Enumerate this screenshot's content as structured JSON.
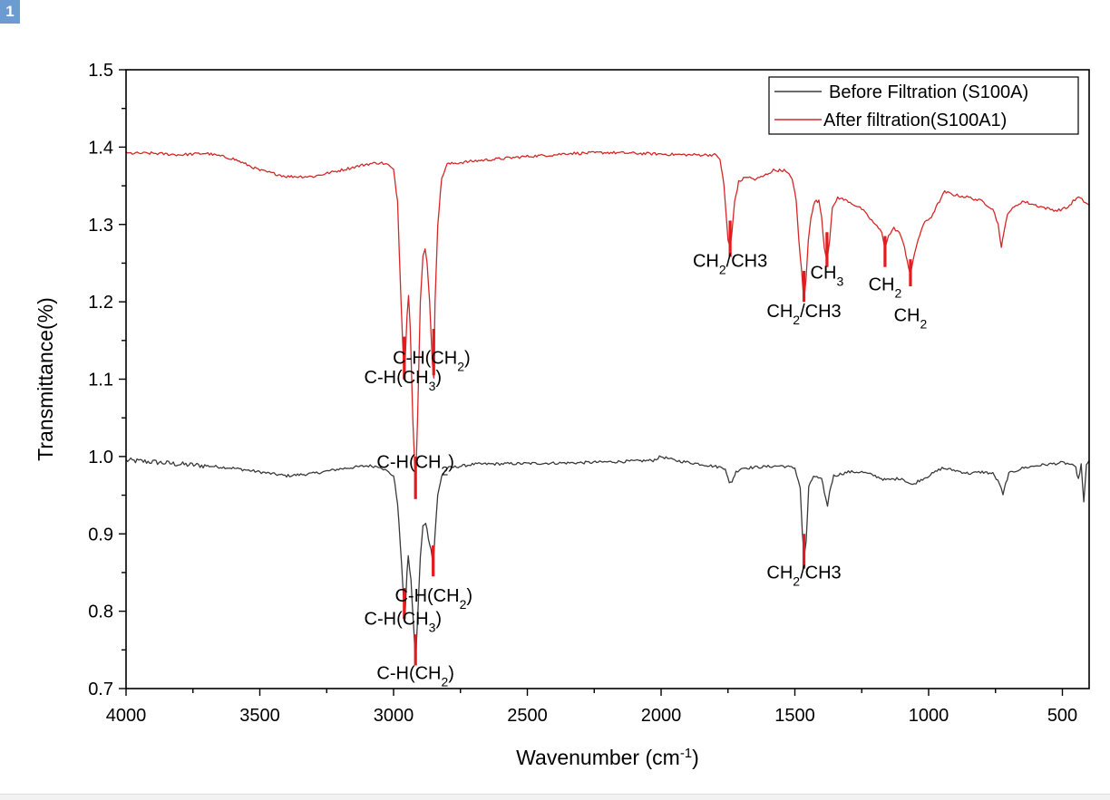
{
  "badge": "1",
  "chart_data": {
    "type": "line",
    "xlabel": "Wavenumber (cm",
    "xlabel_sup": "-1",
    "xlabel_end": ")",
    "ylabel": "Transmittance(%)",
    "xlim": [
      4000,
      400
    ],
    "ylim": [
      0.7,
      1.5
    ],
    "x_reversed": true,
    "xticks": [
      "4000",
      "3500",
      "3000",
      "2500",
      "2000",
      "1500",
      "1000",
      "500"
    ],
    "xtick_values": [
      4000,
      3500,
      3000,
      2500,
      2000,
      1500,
      1000,
      500
    ],
    "yticks": [
      "0.7",
      "0.8",
      "0.9",
      "1.0",
      "1.1",
      "1.2",
      "1.3",
      "1.4",
      "1.5"
    ],
    "ytick_values": [
      0.7,
      0.8,
      0.9,
      1.0,
      1.1,
      1.2,
      1.3,
      1.4,
      1.5
    ],
    "legend_position": "top-right",
    "series": [
      {
        "name": "Before Filtration (S100A)",
        "color": "#3a3a3a",
        "points": [
          [
            4000,
            0.995
          ],
          [
            3900,
            0.993
          ],
          [
            3800,
            0.99
          ],
          [
            3700,
            0.988
          ],
          [
            3600,
            0.985
          ],
          [
            3500,
            0.98
          ],
          [
            3400,
            0.975
          ],
          [
            3300,
            0.978
          ],
          [
            3200,
            0.984
          ],
          [
            3100,
            0.988
          ],
          [
            3050,
            0.987
          ],
          [
            3000,
            0.975
          ],
          [
            2985,
            0.94
          ],
          [
            2970,
            0.86
          ],
          [
            2958,
            0.79
          ],
          [
            2950,
            0.85
          ],
          [
            2945,
            0.87
          ],
          [
            2935,
            0.84
          ],
          [
            2925,
            0.78
          ],
          [
            2918,
            0.735
          ],
          [
            2910,
            0.79
          ],
          [
            2900,
            0.87
          ],
          [
            2890,
            0.91
          ],
          [
            2880,
            0.915
          ],
          [
            2870,
            0.895
          ],
          [
            2860,
            0.88
          ],
          [
            2852,
            0.86
          ],
          [
            2845,
            0.9
          ],
          [
            2835,
            0.95
          ],
          [
            2820,
            0.975
          ],
          [
            2800,
            0.985
          ],
          [
            2700,
            0.99
          ],
          [
            2500,
            0.991
          ],
          [
            2300,
            0.992
          ],
          [
            2200,
            0.993
          ],
          [
            2100,
            0.994
          ],
          [
            2030,
            0.995
          ],
          [
            2000,
            1.0
          ],
          [
            1950,
            0.995
          ],
          [
            1850,
            0.99
          ],
          [
            1760,
            0.985
          ],
          [
            1745,
            0.965
          ],
          [
            1735,
            0.968
          ],
          [
            1720,
            0.98
          ],
          [
            1700,
            0.985
          ],
          [
            1600,
            0.987
          ],
          [
            1550,
            0.988
          ],
          [
            1500,
            0.985
          ],
          [
            1480,
            0.96
          ],
          [
            1472,
            0.9
          ],
          [
            1465,
            0.87
          ],
          [
            1458,
            0.89
          ],
          [
            1448,
            0.96
          ],
          [
            1430,
            0.975
          ],
          [
            1400,
            0.97
          ],
          [
            1390,
            0.955
          ],
          [
            1378,
            0.935
          ],
          [
            1370,
            0.955
          ],
          [
            1355,
            0.975
          ],
          [
            1300,
            0.98
          ],
          [
            1250,
            0.98
          ],
          [
            1200,
            0.975
          ],
          [
            1165,
            0.97
          ],
          [
            1150,
            0.97
          ],
          [
            1100,
            0.972
          ],
          [
            1080,
            0.967
          ],
          [
            1060,
            0.963
          ],
          [
            1040,
            0.968
          ],
          [
            1000,
            0.975
          ],
          [
            950,
            0.985
          ],
          [
            900,
            0.982
          ],
          [
            850,
            0.978
          ],
          [
            800,
            0.98
          ],
          [
            760,
            0.978
          ],
          [
            735,
            0.965
          ],
          [
            722,
            0.95
          ],
          [
            712,
            0.965
          ],
          [
            700,
            0.978
          ],
          [
            650,
            0.985
          ],
          [
            600,
            0.988
          ],
          [
            550,
            0.99
          ],
          [
            500,
            0.992
          ],
          [
            470,
            0.99
          ],
          [
            450,
            0.985
          ],
          [
            440,
            0.97
          ],
          [
            430,
            0.99
          ],
          [
            420,
            0.94
          ],
          [
            410,
            0.99
          ],
          [
            400,
            0.995
          ]
        ]
      },
      {
        "name": "After filtration(S100A1)",
        "color": "#d62728",
        "points": [
          [
            4000,
            1.392
          ],
          [
            3900,
            1.392
          ],
          [
            3800,
            1.39
          ],
          [
            3700,
            1.392
          ],
          [
            3600,
            1.385
          ],
          [
            3500,
            1.37
          ],
          [
            3400,
            1.362
          ],
          [
            3300,
            1.362
          ],
          [
            3200,
            1.37
          ],
          [
            3100,
            1.378
          ],
          [
            3050,
            1.38
          ],
          [
            3020,
            1.377
          ],
          [
            3000,
            1.37
          ],
          [
            2985,
            1.33
          ],
          [
            2972,
            1.2
          ],
          [
            2960,
            1.1
          ],
          [
            2950,
            1.18
          ],
          [
            2944,
            1.21
          ],
          [
            2938,
            1.17
          ],
          [
            2928,
            1.05
          ],
          [
            2918,
            0.96
          ],
          [
            2910,
            1.05
          ],
          [
            2900,
            1.2
          ],
          [
            2890,
            1.26
          ],
          [
            2882,
            1.27
          ],
          [
            2875,
            1.25
          ],
          [
            2865,
            1.2
          ],
          [
            2855,
            1.12
          ],
          [
            2850,
            1.1
          ],
          [
            2845,
            1.2
          ],
          [
            2835,
            1.3
          ],
          [
            2820,
            1.36
          ],
          [
            2800,
            1.378
          ],
          [
            2700,
            1.382
          ],
          [
            2600,
            1.385
          ],
          [
            2500,
            1.388
          ],
          [
            2400,
            1.39
          ],
          [
            2350,
            1.392
          ],
          [
            2300,
            1.392
          ],
          [
            2200,
            1.393
          ],
          [
            2100,
            1.392
          ],
          [
            2000,
            1.391
          ],
          [
            1900,
            1.39
          ],
          [
            1800,
            1.39
          ],
          [
            1780,
            1.385
          ],
          [
            1765,
            1.35
          ],
          [
            1750,
            1.28
          ],
          [
            1742,
            1.27
          ],
          [
            1735,
            1.29
          ],
          [
            1725,
            1.33
          ],
          [
            1710,
            1.355
          ],
          [
            1680,
            1.362
          ],
          [
            1650,
            1.358
          ],
          [
            1620,
            1.362
          ],
          [
            1580,
            1.37
          ],
          [
            1540,
            1.37
          ],
          [
            1510,
            1.36
          ],
          [
            1495,
            1.33
          ],
          [
            1485,
            1.28
          ],
          [
            1475,
            1.24
          ],
          [
            1466,
            1.2
          ],
          [
            1458,
            1.23
          ],
          [
            1450,
            1.28
          ],
          [
            1440,
            1.31
          ],
          [
            1425,
            1.33
          ],
          [
            1410,
            1.33
          ],
          [
            1400,
            1.31
          ],
          [
            1390,
            1.27
          ],
          [
            1380,
            1.255
          ],
          [
            1370,
            1.28
          ],
          [
            1360,
            1.32
          ],
          [
            1340,
            1.335
          ],
          [
            1300,
            1.33
          ],
          [
            1250,
            1.32
          ],
          [
            1200,
            1.3
          ],
          [
            1175,
            1.29
          ],
          [
            1163,
            1.27
          ],
          [
            1150,
            1.285
          ],
          [
            1130,
            1.295
          ],
          [
            1110,
            1.29
          ],
          [
            1090,
            1.27
          ],
          [
            1075,
            1.245
          ],
          [
            1068,
            1.235
          ],
          [
            1060,
            1.25
          ],
          [
            1040,
            1.28
          ],
          [
            1020,
            1.3
          ],
          [
            990,
            1.31
          ],
          [
            960,
            1.33
          ],
          [
            940,
            1.342
          ],
          [
            900,
            1.338
          ],
          [
            850,
            1.335
          ],
          [
            800,
            1.33
          ],
          [
            760,
            1.32
          ],
          [
            740,
            1.3
          ],
          [
            728,
            1.27
          ],
          [
            718,
            1.29
          ],
          [
            705,
            1.315
          ],
          [
            680,
            1.322
          ],
          [
            650,
            1.33
          ],
          [
            600,
            1.325
          ],
          [
            550,
            1.32
          ],
          [
            520,
            1.318
          ],
          [
            500,
            1.32
          ],
          [
            480,
            1.322
          ],
          [
            460,
            1.33
          ],
          [
            440,
            1.335
          ],
          [
            420,
            1.33
          ],
          [
            400,
            1.325
          ]
        ]
      }
    ],
    "annotations": [
      {
        "pre": "C-H(CH",
        "sub": "3",
        "post": ")",
        "x": 2965,
        "y": 1.095,
        "marker": [
          2960,
          1.155,
          1.1
        ]
      },
      {
        "pre": "C-H(CH",
        "sub": "2",
        "post": ")",
        "x": 2858,
        "y": 1.12,
        "marker": [
          2850,
          1.165,
          1.105
        ]
      },
      {
        "pre": "C-H(CH",
        "sub": "2",
        "post": ")",
        "x": 2918,
        "y": 0.985,
        "marker": [
          2918,
          1.0,
          0.945
        ]
      },
      {
        "pre": "CH",
        "sub": "2",
        "post": "/CH3",
        "x": 1742,
        "y": 1.245,
        "marker": [
          1742,
          1.305,
          1.258
        ]
      },
      {
        "pre": "CH",
        "sub": "2",
        "post": "/CH3",
        "x": 1466,
        "y": 1.18,
        "marker": [
          1466,
          1.24,
          1.2
        ]
      },
      {
        "pre": "CH",
        "sub": "3",
        "post": "",
        "x": 1380,
        "y": 1.23,
        "marker": [
          1380,
          1.29,
          1.245
        ]
      },
      {
        "pre": "CH",
        "sub": "2",
        "post": "",
        "x": 1163,
        "y": 1.215,
        "marker": [
          1163,
          1.285,
          1.245
        ]
      },
      {
        "pre": "CH",
        "sub": "2",
        "post": "",
        "x": 1068,
        "y": 1.175,
        "marker": [
          1068,
          1.255,
          1.22
        ]
      },
      {
        "pre": "C-H(CH",
        "sub": "3",
        "post": ")",
        "x": 2965,
        "y": 0.7825,
        "marker": [
          2960,
          0.83,
          0.79
        ]
      },
      {
        "pre": "C-H(CH",
        "sub": "2",
        "post": ")",
        "x": 2850,
        "y": 0.8125,
        "marker": [
          2852,
          0.885,
          0.845
        ]
      },
      {
        "pre": "C-H(CH",
        "sub": "2",
        "post": ")",
        "x": 2918,
        "y": 0.7125,
        "marker": [
          2918,
          0.77,
          0.73
        ]
      },
      {
        "pre": "CH",
        "sub": "2",
        "post": "/CH3",
        "x": 1466,
        "y": 0.8425,
        "marker": [
          1466,
          0.9,
          0.855
        ]
      }
    ]
  }
}
